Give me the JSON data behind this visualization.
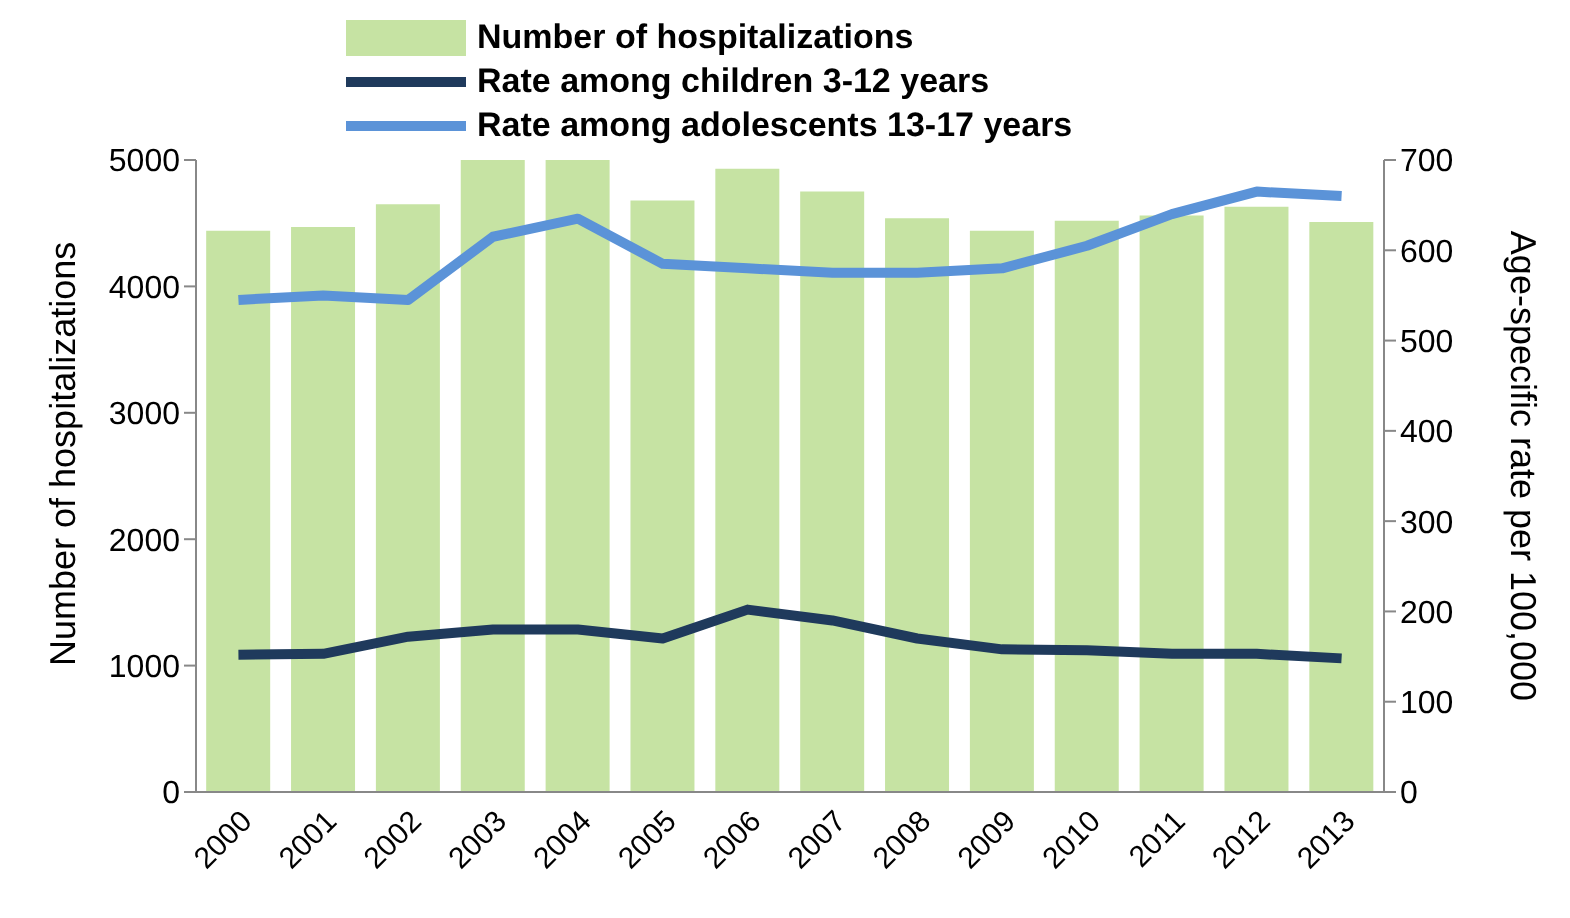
{
  "chart_data": {
    "type": "bar",
    "categories": [
      "2000",
      "2001",
      "2002",
      "2003",
      "2004",
      "2005",
      "2006",
      "2007",
      "2008",
      "2009",
      "2010",
      "2011",
      "2012",
      "2013"
    ],
    "series": [
      {
        "name": "Number of hospitalizations",
        "color": "#c6e3a3",
        "values": [
          4440,
          4470,
          4650,
          5000,
          5000,
          4680,
          4930,
          4750,
          4540,
          4440,
          4520,
          4560,
          4630,
          4510
        ]
      },
      {
        "name": "Rate among children 3-12 years",
        "type": "line",
        "axis": "y2",
        "color": "#1f3a5c",
        "values": [
          152,
          153,
          172,
          180,
          180,
          170,
          202,
          190,
          170,
          158,
          157,
          153,
          153,
          148
        ]
      },
      {
        "name": "Rate among adolescents 13-17 years",
        "type": "line",
        "axis": "y2",
        "color": "#5b93d8",
        "values": [
          545,
          550,
          545,
          615,
          635,
          585,
          580,
          575,
          575,
          580,
          605,
          640,
          665,
          660
        ]
      }
    ],
    "ylabel": "Number of hospitalizations",
    "y2label": "Age-specific rate per 100,000",
    "ylim": [
      0,
      5000
    ],
    "yticks": [
      0,
      1000,
      2000,
      3000,
      4000,
      5000
    ],
    "y2lim": [
      0,
      700
    ],
    "y2ticks": [
      0,
      100,
      200,
      300,
      400,
      500,
      600,
      700
    ],
    "grid": false,
    "legend": "top",
    "marker": "none",
    "line_style": "solid"
  }
}
